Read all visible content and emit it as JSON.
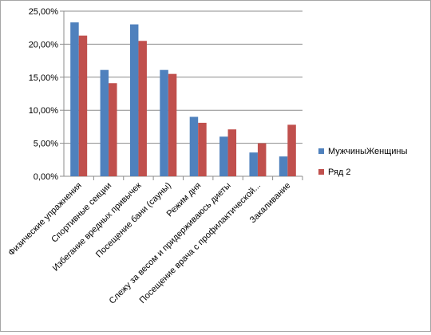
{
  "chart_data": {
    "type": "bar",
    "categories": [
      "Физические упражнения",
      "Спортивные секции",
      "Избегание вредных привычек",
      "Посещение бани (сауны)",
      "Режим дня",
      "Слежу за весом и придерживаюсь диеты",
      "Посещение врача с профилактической...",
      "Закаливание"
    ],
    "series": [
      {
        "name": "МужчиныЖенщины",
        "values": [
          23.3,
          16.1,
          23.0,
          16.1,
          9.0,
          6.0,
          3.6,
          3.0
        ],
        "color": "#4f81bd"
      },
      {
        "name": "Ряд 2",
        "values": [
          21.3,
          14.1,
          20.5,
          15.5,
          8.1,
          7.1,
          5.0,
          7.8
        ],
        "color": "#c0504d"
      }
    ],
    "yticks": [
      "0,00%",
      "5,00%",
      "10,00%",
      "15,00%",
      "20,00%",
      "25,00%"
    ],
    "ylim": [
      0,
      25
    ],
    "grid": true,
    "legend_position": "right"
  }
}
